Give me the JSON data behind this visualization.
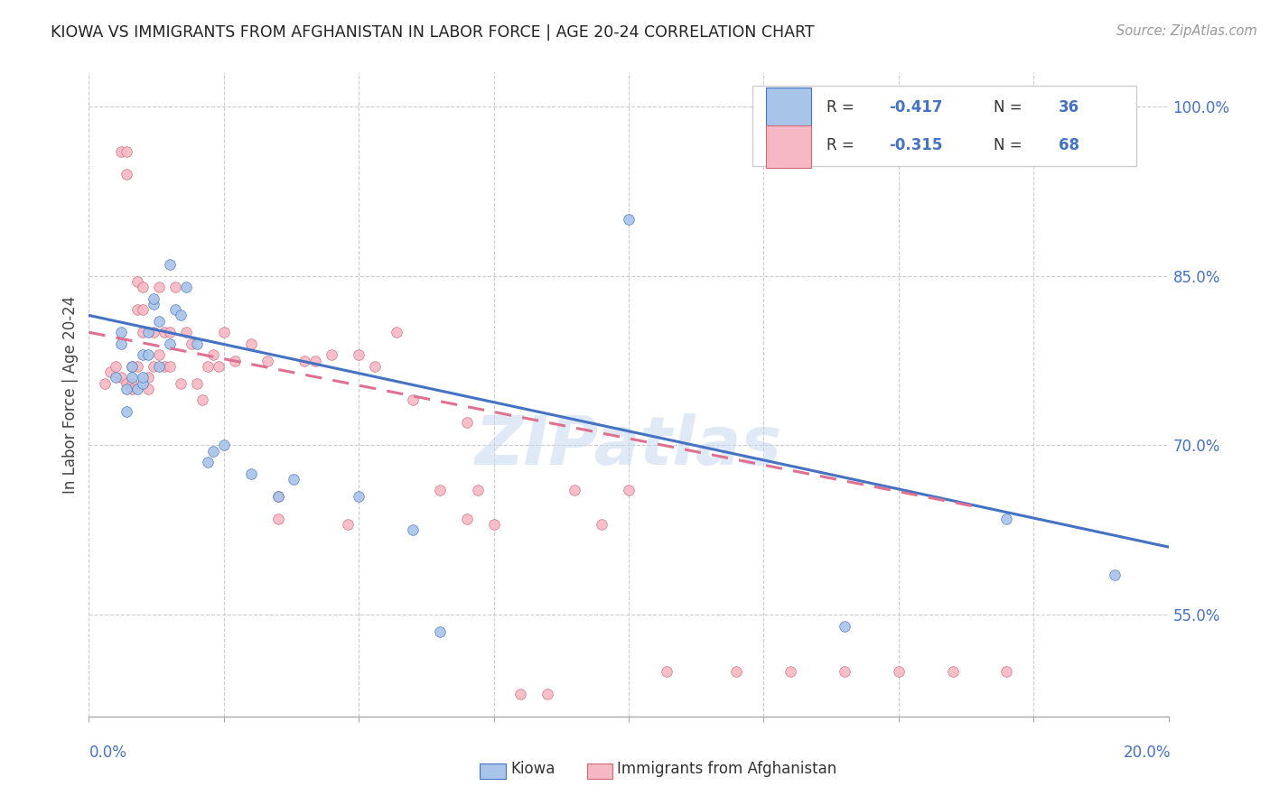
{
  "title": "KIOWA VS IMMIGRANTS FROM AFGHANISTAN IN LABOR FORCE | AGE 20-24 CORRELATION CHART",
  "source": "Source: ZipAtlas.com",
  "ylabel": "In Labor Force | Age 20-24",
  "right_yticks": [
    55.0,
    70.0,
    85.0,
    100.0
  ],
  "xmin": 0.0,
  "xmax": 0.2,
  "ymin": 0.46,
  "ymax": 1.03,
  "blue_color": "#a8c4e8",
  "pink_color": "#f5b8c4",
  "blue_line_color": "#4472c4",
  "pink_line_color": "#e07090",
  "watermark": "ZIPatlas",
  "blue_scatter_x": [
    0.005,
    0.006,
    0.006,
    0.007,
    0.007,
    0.008,
    0.008,
    0.009,
    0.01,
    0.01,
    0.01,
    0.011,
    0.011,
    0.012,
    0.012,
    0.013,
    0.013,
    0.015,
    0.015,
    0.016,
    0.017,
    0.018,
    0.02,
    0.022,
    0.023,
    0.025,
    0.03,
    0.035,
    0.038,
    0.05,
    0.06,
    0.065,
    0.1,
    0.14,
    0.17,
    0.19
  ],
  "blue_scatter_y": [
    0.76,
    0.8,
    0.79,
    0.75,
    0.73,
    0.77,
    0.76,
    0.75,
    0.78,
    0.755,
    0.76,
    0.8,
    0.78,
    0.825,
    0.83,
    0.77,
    0.81,
    0.79,
    0.86,
    0.82,
    0.815,
    0.84,
    0.79,
    0.685,
    0.695,
    0.7,
    0.675,
    0.655,
    0.67,
    0.655,
    0.625,
    0.535,
    0.9,
    0.54,
    0.635,
    0.585
  ],
  "pink_scatter_x": [
    0.003,
    0.004,
    0.005,
    0.006,
    0.006,
    0.007,
    0.007,
    0.007,
    0.008,
    0.008,
    0.008,
    0.009,
    0.009,
    0.009,
    0.01,
    0.01,
    0.01,
    0.011,
    0.011,
    0.012,
    0.012,
    0.013,
    0.013,
    0.014,
    0.014,
    0.015,
    0.015,
    0.016,
    0.017,
    0.018,
    0.019,
    0.02,
    0.021,
    0.022,
    0.023,
    0.024,
    0.025,
    0.027,
    0.03,
    0.033,
    0.035,
    0.04,
    0.042,
    0.045,
    0.048,
    0.05,
    0.053,
    0.057,
    0.06,
    0.065,
    0.07,
    0.072,
    0.075,
    0.08,
    0.085,
    0.09,
    0.095,
    0.1,
    0.107,
    0.12,
    0.13,
    0.14,
    0.15,
    0.16,
    0.17,
    0.035,
    0.07
  ],
  "pink_scatter_y": [
    0.755,
    0.765,
    0.77,
    0.76,
    0.96,
    0.96,
    0.94,
    0.755,
    0.755,
    0.75,
    0.77,
    0.845,
    0.82,
    0.77,
    0.8,
    0.82,
    0.84,
    0.76,
    0.75,
    0.77,
    0.8,
    0.84,
    0.78,
    0.8,
    0.77,
    0.77,
    0.8,
    0.84,
    0.755,
    0.8,
    0.79,
    0.755,
    0.74,
    0.77,
    0.78,
    0.77,
    0.8,
    0.775,
    0.79,
    0.775,
    0.655,
    0.775,
    0.775,
    0.78,
    0.63,
    0.78,
    0.77,
    0.8,
    0.74,
    0.66,
    0.72,
    0.66,
    0.63,
    0.48,
    0.48,
    0.66,
    0.63,
    0.66,
    0.5,
    0.5,
    0.5,
    0.5,
    0.5,
    0.5,
    0.5,
    0.635,
    0.635
  ],
  "blue_line_x": [
    0.0,
    0.2
  ],
  "blue_line_y": [
    0.815,
    0.61
  ],
  "pink_line_x": [
    0.0,
    0.165
  ],
  "pink_line_y": [
    0.8,
    0.645
  ]
}
